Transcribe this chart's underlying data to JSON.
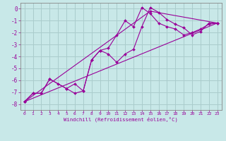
{
  "background_color": "#c8e8e8",
  "grid_color": "#aacccc",
  "line_color": "#990099",
  "marker_color": "#990099",
  "xlim": [
    -0.5,
    23.5
  ],
  "ylim": [
    -8.5,
    0.5
  ],
  "xticks": [
    0,
    1,
    2,
    3,
    4,
    5,
    6,
    7,
    8,
    9,
    10,
    11,
    12,
    13,
    14,
    15,
    16,
    17,
    18,
    19,
    20,
    21,
    22,
    23
  ],
  "yticks": [
    0,
    -1,
    -2,
    -3,
    -4,
    -5,
    -6,
    -7,
    -8
  ],
  "xlabel": "Windchill (Refroidissement éolien,°C)",
  "series": [
    {
      "x": [
        0,
        1,
        2,
        3,
        4,
        5,
        6,
        7,
        8,
        9,
        10,
        11,
        12,
        13,
        14,
        15,
        16,
        17,
        18,
        19,
        20,
        21,
        22,
        23
      ],
      "y": [
        -7.8,
        -7.1,
        -7.1,
        -5.9,
        -6.3,
        -6.7,
        -7.1,
        -6.9,
        -4.3,
        -3.5,
        -3.3,
        -2.2,
        -1.0,
        -1.5,
        0.1,
        -0.4,
        -1.2,
        -1.5,
        -1.7,
        -2.2,
        -2.0,
        -1.7,
        -1.3,
        -1.2
      ]
    },
    {
      "x": [
        0,
        1,
        2,
        3,
        5,
        6,
        7,
        8,
        9,
        10,
        11,
        12,
        13,
        14,
        15,
        16,
        17,
        18,
        19,
        20,
        21,
        22,
        23
      ],
      "y": [
        -7.8,
        -7.1,
        -7.1,
        -5.9,
        -6.7,
        -6.3,
        -6.9,
        -4.3,
        -3.5,
        -3.8,
        -4.5,
        -3.8,
        -3.4,
        -1.5,
        0.1,
        -0.3,
        -0.9,
        -1.3,
        -1.6,
        -2.2,
        -1.9,
        -1.2,
        -1.2
      ]
    },
    {
      "x": [
        0,
        23
      ],
      "y": [
        -7.8,
        -1.2
      ]
    },
    {
      "x": [
        0,
        15,
        23
      ],
      "y": [
        -7.8,
        -0.2,
        -1.2
      ]
    }
  ]
}
